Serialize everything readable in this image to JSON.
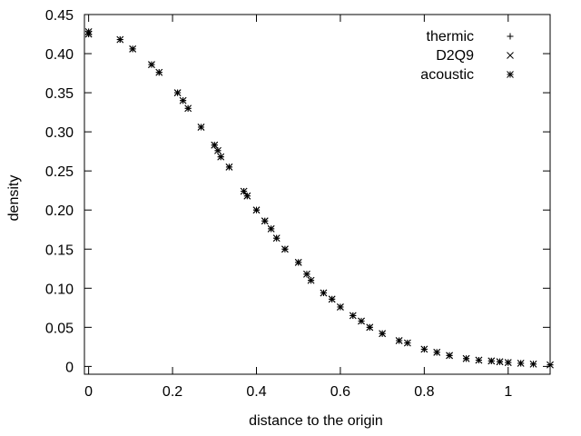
{
  "chart_data": {
    "type": "scatter",
    "xlabel": "distance to the origin",
    "ylabel": "density",
    "xlim": [
      -0.01,
      1.1
    ],
    "ylim": [
      -0.01,
      0.45
    ],
    "xticks": [
      0,
      0.2,
      0.4,
      0.6,
      0.8,
      1
    ],
    "xtick_labels": [
      "0",
      "0.2",
      "0.4",
      "0.6",
      "0.8",
      "1"
    ],
    "yticks": [
      0,
      0.05,
      0.1,
      0.15,
      0.2,
      0.25,
      0.3,
      0.35,
      0.4,
      0.45
    ],
    "ytick_labels": [
      "0",
      "0.05",
      "0.10",
      "0.15",
      "0.20",
      "0.25",
      "0.30",
      "0.35",
      "0.40",
      "0.45"
    ],
    "grid": false,
    "legend_position": "top-right",
    "series": [
      {
        "name": "thermic",
        "marker": "plus",
        "x": [
          0.0,
          0.0,
          0.075,
          0.105,
          0.15,
          0.168,
          0.212,
          0.225,
          0.237,
          0.268,
          0.3,
          0.308,
          0.315,
          0.335,
          0.37,
          0.378,
          0.4,
          0.42,
          0.435,
          0.448,
          0.468,
          0.5,
          0.52,
          0.53,
          0.56,
          0.58,
          0.6,
          0.63,
          0.65,
          0.67,
          0.7,
          0.74,
          0.76,
          0.8,
          0.83,
          0.86,
          0.9,
          0.93,
          0.96,
          0.98,
          1.0,
          1.03,
          1.06,
          1.1
        ],
        "y": [
          0.428,
          0.425,
          0.418,
          0.406,
          0.386,
          0.376,
          0.35,
          0.34,
          0.33,
          0.306,
          0.283,
          0.276,
          0.268,
          0.255,
          0.224,
          0.218,
          0.2,
          0.186,
          0.176,
          0.164,
          0.15,
          0.133,
          0.118,
          0.11,
          0.094,
          0.086,
          0.076,
          0.065,
          0.058,
          0.05,
          0.042,
          0.033,
          0.03,
          0.022,
          0.018,
          0.014,
          0.01,
          0.008,
          0.007,
          0.006,
          0.005,
          0.004,
          0.003,
          0.002
        ]
      },
      {
        "name": "D2Q9",
        "marker": "cross",
        "x": [
          0.0,
          0.0,
          0.075,
          0.105,
          0.15,
          0.168,
          0.212,
          0.225,
          0.237,
          0.268,
          0.3,
          0.308,
          0.315,
          0.335,
          0.37,
          0.378,
          0.4,
          0.42,
          0.435,
          0.448,
          0.468,
          0.5,
          0.52,
          0.53,
          0.56,
          0.58,
          0.6,
          0.63,
          0.65,
          0.67,
          0.7,
          0.74,
          0.76,
          0.8,
          0.83,
          0.86,
          0.9,
          0.93,
          0.96,
          0.98,
          1.0,
          1.03,
          1.06,
          1.1
        ],
        "y": [
          0.428,
          0.425,
          0.418,
          0.406,
          0.386,
          0.376,
          0.35,
          0.34,
          0.33,
          0.306,
          0.283,
          0.276,
          0.268,
          0.255,
          0.224,
          0.218,
          0.2,
          0.186,
          0.176,
          0.164,
          0.15,
          0.133,
          0.118,
          0.11,
          0.094,
          0.086,
          0.076,
          0.065,
          0.058,
          0.05,
          0.042,
          0.033,
          0.03,
          0.022,
          0.018,
          0.014,
          0.01,
          0.008,
          0.007,
          0.006,
          0.005,
          0.004,
          0.003,
          0.002
        ]
      },
      {
        "name": "acoustic",
        "marker": "star",
        "x": [
          0.0,
          0.0,
          0.075,
          0.105,
          0.15,
          0.168,
          0.212,
          0.225,
          0.237,
          0.268,
          0.3,
          0.308,
          0.315,
          0.335,
          0.37,
          0.378,
          0.4,
          0.42,
          0.435,
          0.448,
          0.468,
          0.5,
          0.52,
          0.53,
          0.56,
          0.58,
          0.6,
          0.63,
          0.65,
          0.67,
          0.7,
          0.74,
          0.76,
          0.8,
          0.83,
          0.86,
          0.9,
          0.93,
          0.96,
          0.98,
          1.0,
          1.03,
          1.06,
          1.1
        ],
        "y": [
          0.428,
          0.425,
          0.418,
          0.406,
          0.386,
          0.376,
          0.35,
          0.34,
          0.33,
          0.306,
          0.283,
          0.276,
          0.268,
          0.255,
          0.224,
          0.218,
          0.2,
          0.186,
          0.176,
          0.164,
          0.15,
          0.133,
          0.118,
          0.11,
          0.094,
          0.086,
          0.076,
          0.065,
          0.058,
          0.05,
          0.042,
          0.033,
          0.03,
          0.022,
          0.018,
          0.014,
          0.01,
          0.008,
          0.007,
          0.006,
          0.005,
          0.004,
          0.003,
          0.002
        ]
      }
    ]
  }
}
